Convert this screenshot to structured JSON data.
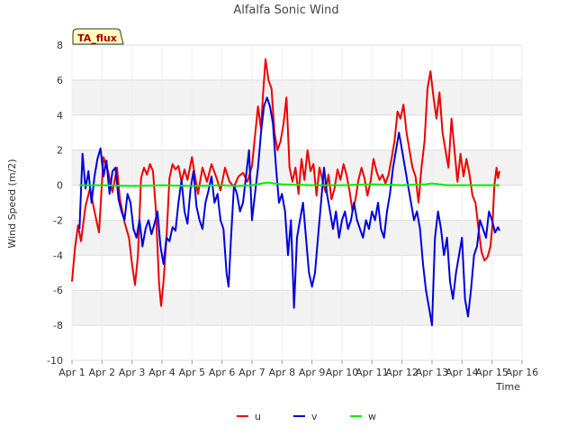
{
  "chart_data": {
    "type": "line",
    "title": "Alfalfa Sonic Wind",
    "xlabel": "Time",
    "ylabel": "Wind Speed (m/2)",
    "badge": "TA_flux",
    "xlim": [
      1,
      16
    ],
    "ylim": [
      -10,
      8
    ],
    "x_ticks": [
      {
        "value": 1,
        "label": "Apr 1"
      },
      {
        "value": 2,
        "label": "Apr 2"
      },
      {
        "value": 3,
        "label": "Apr 3"
      },
      {
        "value": 4,
        "label": "Apr 4"
      },
      {
        "value": 5,
        "label": "Apr 5"
      },
      {
        "value": 6,
        "label": "Apr 6"
      },
      {
        "value": 7,
        "label": "Apr 7"
      },
      {
        "value": 8,
        "label": "Apr 8"
      },
      {
        "value": 9,
        "label": "Apr 9"
      },
      {
        "value": 10,
        "label": "Apr 10"
      },
      {
        "value": 11,
        "label": "Apr 11"
      },
      {
        "value": 12,
        "label": "Apr 12"
      },
      {
        "value": 13,
        "label": "Apr 13"
      },
      {
        "value": 14,
        "label": "Apr 14"
      },
      {
        "value": 15,
        "label": "Apr 15"
      },
      {
        "value": 16,
        "label": "Apr 16"
      }
    ],
    "y_ticks": [
      -10,
      -8,
      -6,
      -4,
      -2,
      0,
      2,
      4,
      6,
      8
    ],
    "legend_position": "bottom-center",
    "series": [
      {
        "name": "u",
        "color": "#ee0000",
        "points": [
          [
            1.0,
            -5.5
          ],
          [
            1.1,
            -3.6
          ],
          [
            1.2,
            -2.3
          ],
          [
            1.3,
            -3.2
          ],
          [
            1.45,
            -1.2
          ],
          [
            1.6,
            -0.2
          ],
          [
            1.75,
            -1.5
          ],
          [
            1.9,
            -2.7
          ],
          [
            2.05,
            1.6
          ],
          [
            2.2,
            0.8
          ],
          [
            2.35,
            -0.4
          ],
          [
            2.5,
            1.0
          ],
          [
            2.6,
            -0.8
          ],
          [
            2.75,
            -2.1
          ],
          [
            2.9,
            -3.0
          ],
          [
            3.0,
            -4.5
          ],
          [
            3.1,
            -5.7
          ],
          [
            3.2,
            -4.0
          ],
          [
            3.3,
            0.4
          ],
          [
            3.4,
            1.0
          ],
          [
            3.5,
            0.6
          ],
          [
            3.6,
            1.2
          ],
          [
            3.7,
            0.8
          ],
          [
            3.8,
            -1.5
          ],
          [
            3.9,
            -5.6
          ],
          [
            3.97,
            -6.9
          ],
          [
            4.05,
            -5.5
          ],
          [
            4.15,
            -3.0
          ],
          [
            4.25,
            0.4
          ],
          [
            4.35,
            1.2
          ],
          [
            4.45,
            0.9
          ],
          [
            4.55,
            1.1
          ],
          [
            4.65,
            0.2
          ],
          [
            4.75,
            0.9
          ],
          [
            4.85,
            0.3
          ],
          [
            5.0,
            1.6
          ],
          [
            5.1,
            0.5
          ],
          [
            5.2,
            -0.5
          ],
          [
            5.35,
            1.0
          ],
          [
            5.5,
            0.2
          ],
          [
            5.65,
            1.2
          ],
          [
            5.8,
            0.5
          ],
          [
            5.95,
            -0.3
          ],
          [
            6.1,
            1.0
          ],
          [
            6.25,
            0.2
          ],
          [
            6.4,
            -0.1
          ],
          [
            6.55,
            0.5
          ],
          [
            6.7,
            0.7
          ],
          [
            6.85,
            0.2
          ],
          [
            7.0,
            1.1
          ],
          [
            7.1,
            2.8
          ],
          [
            7.2,
            4.5
          ],
          [
            7.3,
            3.2
          ],
          [
            7.37,
            5.2
          ],
          [
            7.45,
            7.2
          ],
          [
            7.55,
            6.0
          ],
          [
            7.65,
            5.5
          ],
          [
            7.75,
            3.0
          ],
          [
            7.85,
            2.0
          ],
          [
            7.95,
            2.5
          ],
          [
            8.05,
            3.5
          ],
          [
            8.15,
            5.0
          ],
          [
            8.25,
            1.0
          ],
          [
            8.35,
            0.2
          ],
          [
            8.45,
            1.0
          ],
          [
            8.55,
            -0.5
          ],
          [
            8.65,
            1.5
          ],
          [
            8.75,
            0.3
          ],
          [
            8.85,
            2.0
          ],
          [
            8.95,
            0.8
          ],
          [
            9.05,
            1.2
          ],
          [
            9.15,
            -0.6
          ],
          [
            9.25,
            1.0
          ],
          [
            9.35,
            0.3
          ],
          [
            9.45,
            -0.4
          ],
          [
            9.55,
            0.6
          ],
          [
            9.65,
            -0.8
          ],
          [
            9.75,
            -0.2
          ],
          [
            9.85,
            0.9
          ],
          [
            9.95,
            0.3
          ],
          [
            10.05,
            1.2
          ],
          [
            10.15,
            0.6
          ],
          [
            10.25,
            -0.3
          ],
          [
            10.35,
            -1.5
          ],
          [
            10.45,
            -0.8
          ],
          [
            10.55,
            0.3
          ],
          [
            10.65,
            1.0
          ],
          [
            10.75,
            0.4
          ],
          [
            10.85,
            -0.6
          ],
          [
            10.95,
            0.2
          ],
          [
            11.05,
            1.5
          ],
          [
            11.15,
            0.8
          ],
          [
            11.25,
            0.3
          ],
          [
            11.35,
            0.6
          ],
          [
            11.45,
            0.1
          ],
          [
            11.55,
            0.6
          ],
          [
            11.65,
            1.5
          ],
          [
            11.75,
            2.5
          ],
          [
            11.85,
            4.2
          ],
          [
            11.95,
            3.8
          ],
          [
            12.05,
            4.6
          ],
          [
            12.15,
            3.0
          ],
          [
            12.25,
            2.0
          ],
          [
            12.35,
            1.0
          ],
          [
            12.45,
            0.5
          ],
          [
            12.55,
            -1.0
          ],
          [
            12.65,
            1.0
          ],
          [
            12.75,
            2.5
          ],
          [
            12.85,
            5.5
          ],
          [
            12.95,
            6.5
          ],
          [
            13.05,
            5.0
          ],
          [
            13.15,
            3.8
          ],
          [
            13.25,
            5.3
          ],
          [
            13.35,
            3.0
          ],
          [
            13.45,
            2.0
          ],
          [
            13.55,
            1.0
          ],
          [
            13.65,
            3.8
          ],
          [
            13.75,
            2.0
          ],
          [
            13.85,
            0.2
          ],
          [
            13.95,
            1.8
          ],
          [
            14.05,
            0.5
          ],
          [
            14.15,
            1.5
          ],
          [
            14.25,
            0.6
          ],
          [
            14.35,
            -0.6
          ],
          [
            14.45,
            -1.0
          ],
          [
            14.55,
            -2.5
          ],
          [
            14.65,
            -3.8
          ],
          [
            14.75,
            -4.3
          ],
          [
            14.85,
            -4.1
          ],
          [
            14.95,
            -3.5
          ],
          [
            15.02,
            -2.2
          ],
          [
            15.08,
            0.0
          ],
          [
            15.15,
            1.0
          ],
          [
            15.2,
            0.4
          ],
          [
            15.25,
            0.8
          ]
        ]
      },
      {
        "name": "v",
        "color": "#0000dd",
        "points": [
          [
            1.25,
            -2.5
          ],
          [
            1.35,
            1.8
          ],
          [
            1.45,
            -0.2
          ],
          [
            1.55,
            0.8
          ],
          [
            1.65,
            -1.0
          ],
          [
            1.75,
            0.5
          ],
          [
            1.85,
            1.5
          ],
          [
            1.95,
            2.1
          ],
          [
            2.05,
            0.5
          ],
          [
            2.15,
            1.4
          ],
          [
            2.25,
            -0.5
          ],
          [
            2.35,
            0.8
          ],
          [
            2.45,
            1.0
          ],
          [
            2.55,
            -0.8
          ],
          [
            2.65,
            -1.5
          ],
          [
            2.75,
            -2.0
          ],
          [
            2.85,
            -0.5
          ],
          [
            2.95,
            -1.0
          ],
          [
            3.05,
            -2.5
          ],
          [
            3.15,
            -3.0
          ],
          [
            3.25,
            -2.0
          ],
          [
            3.35,
            -3.5
          ],
          [
            3.45,
            -2.5
          ],
          [
            3.55,
            -2.0
          ],
          [
            3.65,
            -2.8
          ],
          [
            3.75,
            -2.2
          ],
          [
            3.85,
            -1.5
          ],
          [
            3.95,
            -3.5
          ],
          [
            4.05,
            -4.5
          ],
          [
            4.15,
            -3.0
          ],
          [
            4.25,
            -3.2
          ],
          [
            4.35,
            -2.4
          ],
          [
            4.45,
            -2.6
          ],
          [
            4.55,
            -1.0
          ],
          [
            4.65,
            0.3
          ],
          [
            4.75,
            -1.5
          ],
          [
            4.85,
            -2.2
          ],
          [
            4.95,
            -0.2
          ],
          [
            5.05,
            0.8
          ],
          [
            5.15,
            -1.2
          ],
          [
            5.25,
            -2.0
          ],
          [
            5.35,
            -2.5
          ],
          [
            5.45,
            -1.0
          ],
          [
            5.55,
            -0.3
          ],
          [
            5.65,
            0.5
          ],
          [
            5.75,
            -1.0
          ],
          [
            5.85,
            -0.5
          ],
          [
            5.95,
            -2.0
          ],
          [
            6.05,
            -2.5
          ],
          [
            6.15,
            -5.0
          ],
          [
            6.22,
            -5.8
          ],
          [
            6.3,
            -3.0
          ],
          [
            6.4,
            0.0
          ],
          [
            6.5,
            -0.5
          ],
          [
            6.6,
            -1.5
          ],
          [
            6.7,
            -1.0
          ],
          [
            6.8,
            0.5
          ],
          [
            6.9,
            2.0
          ],
          [
            7.0,
            -2.0
          ],
          [
            7.1,
            -0.5
          ],
          [
            7.2,
            1.0
          ],
          [
            7.3,
            3.0
          ],
          [
            7.4,
            4.5
          ],
          [
            7.5,
            5.0
          ],
          [
            7.6,
            4.5
          ],
          [
            7.7,
            3.5
          ],
          [
            7.8,
            1.0
          ],
          [
            7.9,
            -1.0
          ],
          [
            8.0,
            -0.5
          ],
          [
            8.1,
            -1.5
          ],
          [
            8.2,
            -4.0
          ],
          [
            8.3,
            -2.0
          ],
          [
            8.4,
            -7.0
          ],
          [
            8.5,
            -3.0
          ],
          [
            8.6,
            -2.0
          ],
          [
            8.7,
            -1.0
          ],
          [
            8.8,
            -3.0
          ],
          [
            8.9,
            -5.0
          ],
          [
            9.0,
            -5.8
          ],
          [
            9.1,
            -5.0
          ],
          [
            9.2,
            -3.0
          ],
          [
            9.3,
            -1.0
          ],
          [
            9.4,
            1.0
          ],
          [
            9.5,
            -0.5
          ],
          [
            9.6,
            -1.5
          ],
          [
            9.7,
            -2.5
          ],
          [
            9.8,
            -1.5
          ],
          [
            9.9,
            -3.0
          ],
          [
            10.0,
            -2.0
          ],
          [
            10.1,
            -1.5
          ],
          [
            10.2,
            -2.5
          ],
          [
            10.3,
            -2.0
          ],
          [
            10.4,
            -1.0
          ],
          [
            10.5,
            -2.0
          ],
          [
            10.6,
            -2.5
          ],
          [
            10.7,
            -3.0
          ],
          [
            10.8,
            -2.0
          ],
          [
            10.9,
            -2.5
          ],
          [
            11.0,
            -1.5
          ],
          [
            11.1,
            -2.0
          ],
          [
            11.2,
            -1.0
          ],
          [
            11.3,
            -2.5
          ],
          [
            11.4,
            -3.0
          ],
          [
            11.5,
            -1.5
          ],
          [
            11.6,
            -0.5
          ],
          [
            11.7,
            1.0
          ],
          [
            11.8,
            2.0
          ],
          [
            11.9,
            3.0
          ],
          [
            12.0,
            2.0
          ],
          [
            12.1,
            1.0
          ],
          [
            12.2,
            0.0
          ],
          [
            12.3,
            -1.0
          ],
          [
            12.4,
            -2.0
          ],
          [
            12.5,
            -1.5
          ],
          [
            12.6,
            -2.5
          ],
          [
            12.7,
            -4.5
          ],
          [
            12.8,
            -6.0
          ],
          [
            12.9,
            -7.0
          ],
          [
            13.0,
            -8.0
          ],
          [
            13.1,
            -3.0
          ],
          [
            13.2,
            -1.5
          ],
          [
            13.3,
            -2.5
          ],
          [
            13.4,
            -4.0
          ],
          [
            13.5,
            -3.0
          ],
          [
            13.6,
            -5.5
          ],
          [
            13.7,
            -6.5
          ],
          [
            13.8,
            -5.0
          ],
          [
            13.9,
            -4.0
          ],
          [
            14.0,
            -3.0
          ],
          [
            14.1,
            -6.5
          ],
          [
            14.2,
            -7.5
          ],
          [
            14.3,
            -6.0
          ],
          [
            14.4,
            -4.0
          ],
          [
            14.5,
            -3.5
          ],
          [
            14.6,
            -2.0
          ],
          [
            14.7,
            -2.5
          ],
          [
            14.8,
            -3.0
          ],
          [
            14.9,
            -1.5
          ],
          [
            15.0,
            -2.0
          ],
          [
            15.1,
            -2.7
          ],
          [
            15.2,
            -2.4
          ],
          [
            15.25,
            -2.6
          ]
        ]
      },
      {
        "name": "w",
        "color": "#00ee00",
        "points": [
          [
            1.25,
            0.0
          ],
          [
            2.0,
            0.0
          ],
          [
            3.0,
            -0.05
          ],
          [
            4.0,
            0.0
          ],
          [
            5.0,
            -0.05
          ],
          [
            6.0,
            0.0
          ],
          [
            6.5,
            -0.05
          ],
          [
            7.0,
            0.0
          ],
          [
            7.5,
            0.15
          ],
          [
            8.0,
            0.05
          ],
          [
            9.0,
            0.0
          ],
          [
            10.0,
            0.0
          ],
          [
            11.0,
            0.05
          ],
          [
            12.0,
            0.0
          ],
          [
            12.8,
            0.05
          ],
          [
            13.0,
            0.1
          ],
          [
            13.5,
            0.0
          ],
          [
            14.0,
            0.0
          ],
          [
            14.5,
            0.0
          ],
          [
            15.0,
            0.0
          ],
          [
            15.25,
            0.0
          ]
        ]
      }
    ]
  }
}
